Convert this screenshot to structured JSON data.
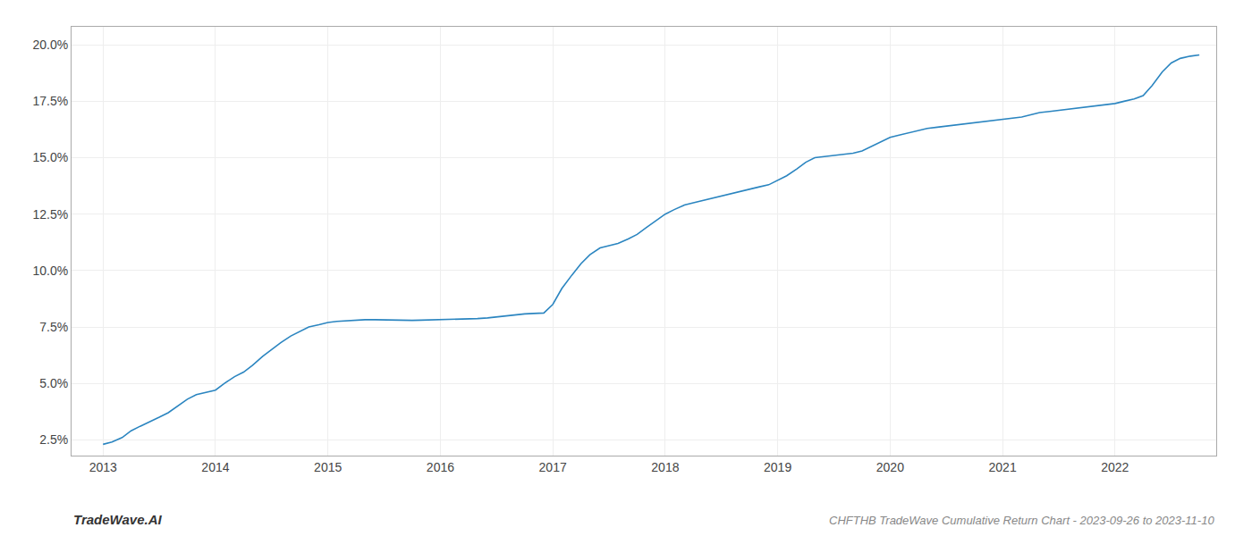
{
  "chart_data": {
    "type": "line",
    "title": "CHFTHB TradeWave Cumulative Return Chart - 2023-09-26 to 2023-11-10",
    "annotations": [
      {
        "text": "TradeWave.AI"
      }
    ],
    "color": "#2b85c0",
    "grid": true,
    "x": [
      2013.0,
      2013.08,
      2013.17,
      2013.25,
      2013.33,
      2013.42,
      2013.5,
      2013.58,
      2013.67,
      2013.75,
      2013.83,
      2013.92,
      2014.0,
      2014.08,
      2014.17,
      2014.25,
      2014.33,
      2014.42,
      2014.5,
      2014.58,
      2014.67,
      2014.75,
      2014.83,
      2014.92,
      2015.0,
      2015.08,
      2015.17,
      2015.25,
      2015.33,
      2015.42,
      2015.5,
      2015.58,
      2015.67,
      2015.75,
      2015.83,
      2015.92,
      2016.0,
      2016.08,
      2016.17,
      2016.25,
      2016.33,
      2016.42,
      2016.5,
      2016.58,
      2016.67,
      2016.75,
      2016.83,
      2016.92,
      2017.0,
      2017.08,
      2017.17,
      2017.25,
      2017.33,
      2017.42,
      2017.5,
      2017.58,
      2017.67,
      2017.75,
      2017.83,
      2017.92,
      2018.0,
      2018.08,
      2018.17,
      2018.25,
      2018.33,
      2018.42,
      2018.5,
      2018.58,
      2018.67,
      2018.75,
      2018.83,
      2018.92,
      2019.0,
      2019.08,
      2019.17,
      2019.25,
      2019.33,
      2019.42,
      2019.5,
      2019.58,
      2019.67,
      2019.75,
      2019.83,
      2019.92,
      2020.0,
      2020.08,
      2020.17,
      2020.25,
      2020.33,
      2020.42,
      2020.5,
      2020.58,
      2020.67,
      2020.75,
      2020.83,
      2020.92,
      2021.0,
      2021.08,
      2021.17,
      2021.25,
      2021.33,
      2021.42,
      2021.5,
      2021.58,
      2021.67,
      2021.75,
      2021.83,
      2021.92,
      2022.0,
      2022.08,
      2022.17,
      2022.25,
      2022.33,
      2022.42,
      2022.5,
      2022.58,
      2022.67,
      2022.75
    ],
    "values": [
      2.3,
      2.4,
      2.6,
      2.9,
      3.1,
      3.3,
      3.5,
      3.7,
      4.0,
      4.3,
      4.5,
      4.6,
      4.7,
      5.0,
      5.3,
      5.5,
      5.8,
      6.2,
      6.5,
      6.8,
      7.1,
      7.3,
      7.5,
      7.6,
      7.7,
      7.75,
      7.78,
      7.8,
      7.82,
      7.82,
      7.81,
      7.8,
      7.79,
      7.79,
      7.8,
      7.81,
      7.82,
      7.83,
      7.84,
      7.85,
      7.87,
      7.9,
      7.95,
      8.0,
      8.05,
      8.08,
      8.1,
      8.12,
      8.5,
      9.2,
      9.8,
      10.3,
      10.7,
      11.0,
      11.1,
      11.2,
      11.4,
      11.6,
      11.9,
      12.2,
      12.5,
      12.7,
      12.9,
      13.0,
      13.1,
      13.2,
      13.3,
      13.4,
      13.5,
      13.6,
      13.7,
      13.8,
      14.0,
      14.2,
      14.5,
      14.8,
      15.0,
      15.05,
      15.1,
      15.15,
      15.2,
      15.3,
      15.5,
      15.7,
      15.9,
      16.0,
      16.1,
      16.2,
      16.3,
      16.35,
      16.4,
      16.45,
      16.5,
      16.55,
      16.6,
      16.65,
      16.7,
      16.75,
      16.8,
      16.9,
      17.0,
      17.05,
      17.1,
      17.15,
      17.2,
      17.25,
      17.3,
      17.35,
      17.4,
      17.5,
      17.6,
      17.75,
      18.2,
      18.8,
      19.2,
      19.4,
      19.5,
      19.55
    ],
    "xlim": [
      2012.72,
      2022.9
    ],
    "ylim": [
      1.8,
      20.8
    ],
    "xticks": [
      2013,
      2014,
      2015,
      2016,
      2017,
      2018,
      2019,
      2020,
      2021,
      2022
    ],
    "yticks": [
      {
        "value": 2.5,
        "label": "2.5%"
      },
      {
        "value": 5.0,
        "label": "5.0%"
      },
      {
        "value": 7.5,
        "label": "7.5%"
      },
      {
        "value": 10.0,
        "label": "10.0%"
      },
      {
        "value": 12.5,
        "label": "12.5%"
      },
      {
        "value": 15.0,
        "label": "15.0%"
      },
      {
        "value": 17.5,
        "label": "17.5%"
      },
      {
        "value": 20.0,
        "label": "20.0%"
      }
    ]
  }
}
